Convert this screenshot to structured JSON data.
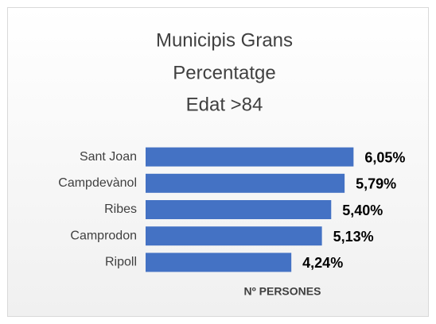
{
  "chart_data": {
    "type": "bar",
    "orientation": "horizontal",
    "title": [
      "Municipis Grans",
      "Percentatge",
      "Edat >84"
    ],
    "categories": [
      "Sant Joan",
      "Campdevànol",
      "Ribes",
      "Camprodon",
      "Ripoll"
    ],
    "values": [
      6.05,
      5.79,
      5.4,
      5.13,
      4.24
    ],
    "value_labels": [
      "6,05%",
      "5,79%",
      "5,40%",
      "5,13%",
      "4,24%"
    ],
    "color": "#4472c4",
    "xlabel": "Nº PERSONES",
    "xlim": [
      0,
      8
    ]
  }
}
